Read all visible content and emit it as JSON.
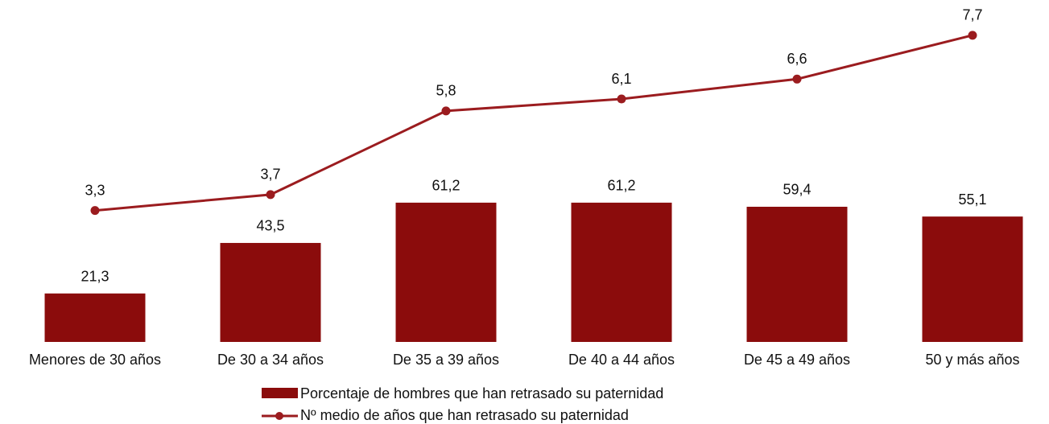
{
  "chart_data": {
    "type": "bar_line",
    "categories": [
      "Menores de 30 años",
      "De 30 a 34 años",
      "De 35 a 39 años",
      "De 40 a 44 años",
      "De 45 a 49 años",
      "50 y más años"
    ],
    "series": [
      {
        "name": "Porcentaje de hombres que han retrasado su paternidad",
        "type": "bar",
        "color": "#8b0c0c",
        "values": [
          21.3,
          43.5,
          61.2,
          61.2,
          59.4,
          55.1
        ],
        "value_labels": [
          "21,3",
          "43,5",
          "61,2",
          "61,2",
          "59,4",
          "55,1"
        ]
      },
      {
        "name": "Nº medio de años que han retrasado su paternidad",
        "type": "line",
        "axis": "y2",
        "color": "#9b1c1f",
        "values": [
          3.3,
          3.7,
          5.8,
          6.1,
          6.6,
          7.7
        ],
        "value_labels": [
          "3,3",
          "3,7",
          "5,8",
          "6,1",
          "6,6",
          "7,7"
        ]
      }
    ],
    "ylim": [
      0,
      140
    ],
    "y2lim": [
      0,
      8
    ]
  }
}
